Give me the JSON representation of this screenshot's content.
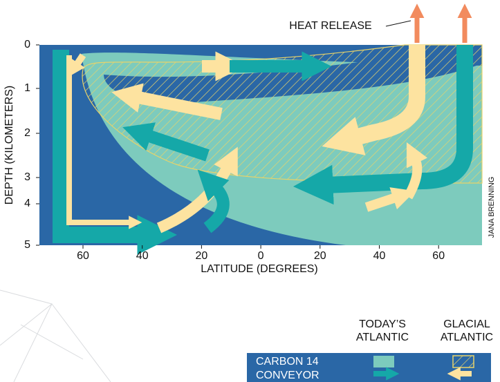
{
  "annotation": "HEAT RELEASE",
  "credit": "JANA BRENNING",
  "axes": {
    "y_label": "DEPTH (KILOMETERS)",
    "y_ticks": [
      0,
      1,
      2,
      3,
      4,
      5
    ],
    "x_label": "LATITUDE (DEGREES)",
    "x_ticks": [
      60,
      40,
      20,
      0,
      20,
      40,
      60
    ]
  },
  "legend": {
    "columns": [
      {
        "lines": [
          "TODAY’S",
          "ATLANTIC"
        ]
      },
      {
        "lines": [
          "GLACIAL",
          "ATLANTIC"
        ]
      }
    ],
    "rows": [
      "CARBON 14",
      "CONVEYOR"
    ]
  }
}
